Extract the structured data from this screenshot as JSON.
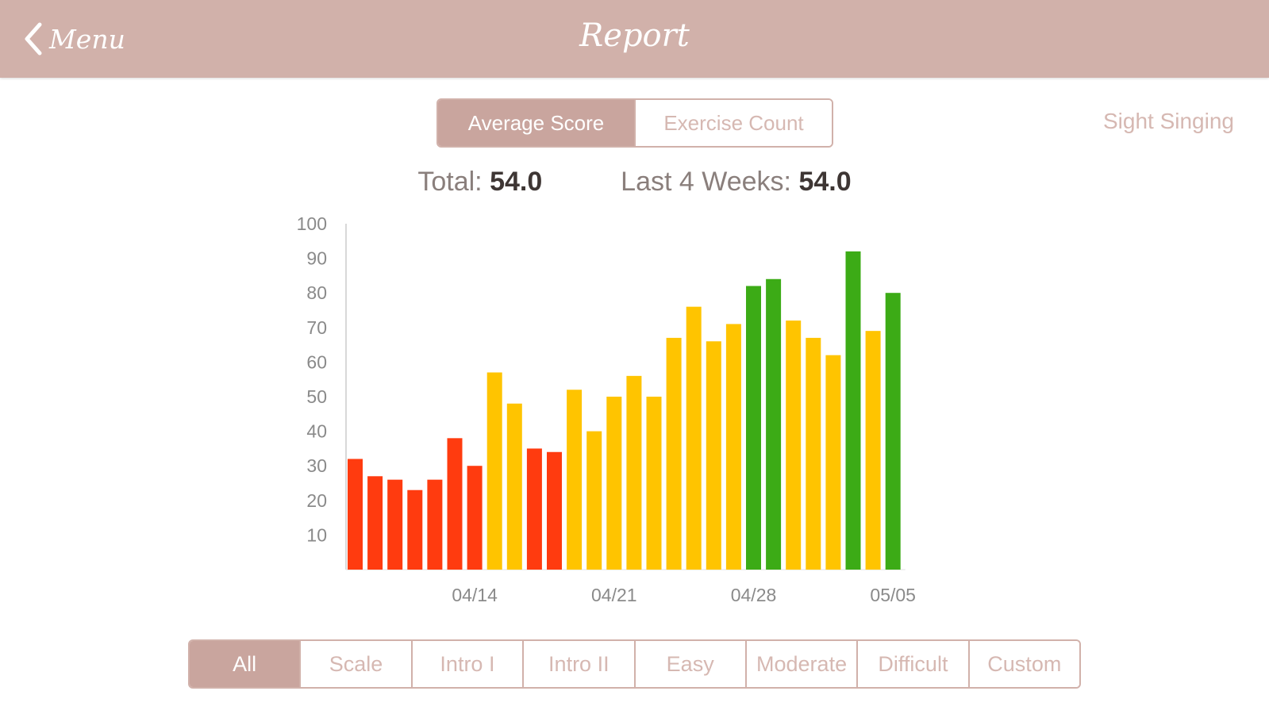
{
  "nav": {
    "back_label": "Menu",
    "title": "Report"
  },
  "metric_tabs": [
    {
      "label": "Average Score",
      "selected": true
    },
    {
      "label": "Exercise Count",
      "selected": false
    }
  ],
  "mode_label": "Sight Singing",
  "summary": {
    "total_label": "Total:",
    "total_value": "54.0",
    "recent_label": "Last 4 Weeks:",
    "recent_value": "54.0"
  },
  "colors": {
    "accent": "#c9a59e",
    "nav": "#d1b1aa",
    "low": "#ff3b0f",
    "mid": "#ffc400",
    "high": "#3cab16"
  },
  "chart_data": {
    "type": "bar",
    "ylim": [
      0,
      100
    ],
    "yticks": [
      10,
      20,
      30,
      40,
      50,
      60,
      70,
      80,
      90,
      100
    ],
    "xtick_labels": [
      {
        "label": "04/14",
        "bar_index": 6
      },
      {
        "label": "04/21",
        "bar_index": 13
      },
      {
        "label": "04/28",
        "bar_index": 20
      },
      {
        "label": "05/05",
        "bar_index": 27
      }
    ],
    "values": [
      32,
      27,
      26,
      23,
      26,
      38,
      30,
      57,
      48,
      35,
      34,
      52,
      40,
      50,
      56,
      50,
      67,
      76,
      66,
      71,
      82,
      84,
      72,
      67,
      62,
      92,
      69,
      80
    ],
    "color_bands": [
      {
        "min": 0,
        "max": 40,
        "color": "#ff3b0f"
      },
      {
        "min": 40,
        "max": 80,
        "color": "#ffc400"
      },
      {
        "min": 80,
        "max": 100,
        "color": "#3cab16"
      }
    ],
    "grid": false
  },
  "filters": [
    {
      "label": "All",
      "selected": true
    },
    {
      "label": "Scale",
      "selected": false
    },
    {
      "label": "Intro I",
      "selected": false
    },
    {
      "label": "Intro II",
      "selected": false
    },
    {
      "label": "Easy",
      "selected": false
    },
    {
      "label": "Moderate",
      "selected": false
    },
    {
      "label": "Difficult",
      "selected": false
    },
    {
      "label": "Custom",
      "selected": false
    }
  ]
}
